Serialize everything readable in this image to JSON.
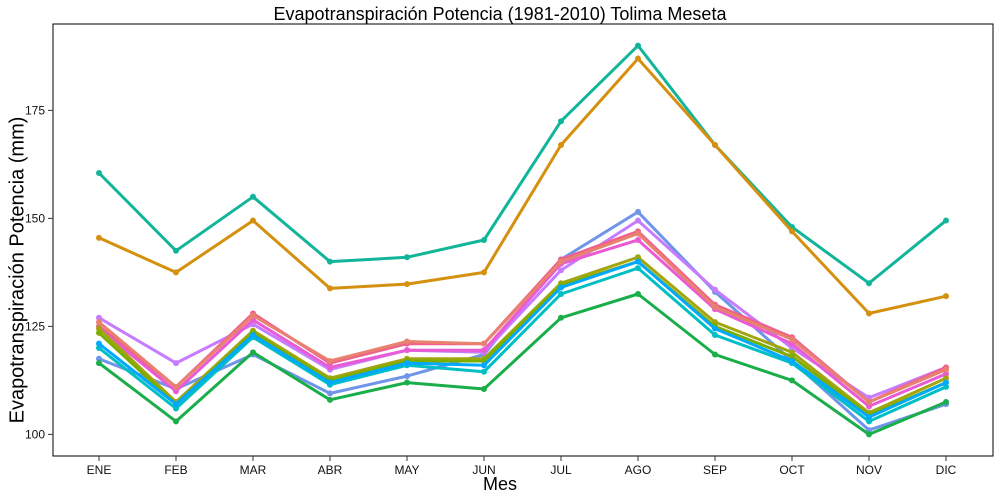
{
  "chart_data": {
    "type": "line",
    "title": "Evapotranspiración Potencia (1981-2010)  Tolima Meseta",
    "xlabel": "Mes",
    "ylabel": "Evapotranspiración Potencia  (mm)",
    "categories": [
      "ENE",
      "FEB",
      "MAR",
      "ABR",
      "MAY",
      "JUN",
      "JUL",
      "AGO",
      "SEP",
      "OCT",
      "NOV",
      "DIC"
    ],
    "ylim": [
      95,
      195
    ],
    "yticks": [
      100,
      125,
      150,
      175
    ],
    "grid": false,
    "legend": "none",
    "series": [
      {
        "color": "#12b59a",
        "values": [
          160.5,
          142.5,
          155,
          140,
          141,
          145,
          172.5,
          190,
          167,
          148,
          135,
          149.5
        ]
      },
      {
        "color": "#d4900e",
        "values": [
          145.5,
          137.5,
          149.5,
          133.8,
          134.8,
          137.5,
          167,
          187,
          167,
          147,
          128,
          132
        ]
      },
      {
        "color": "#6f95e8",
        "values": [
          117.5,
          110.5,
          118.5,
          109.5,
          113.5,
          118.5,
          140.5,
          151.5,
          133,
          117,
          101,
          107
        ]
      },
      {
        "color": "#c77cff",
        "values": [
          127,
          116.5,
          125.5,
          115,
          119.5,
          119,
          138,
          149.5,
          133.5,
          120,
          108.5,
          115.5
        ]
      },
      {
        "color": "#f0608c",
        "values": [
          125,
          111,
          128,
          116.5,
          121,
          121,
          140.5,
          147,
          130,
          122.5,
          107.5,
          115.5
        ]
      },
      {
        "color": "#e95bd4",
        "values": [
          124.5,
          110,
          126.5,
          115.5,
          119.5,
          119.5,
          139.5,
          145,
          129,
          121,
          106.5,
          114
        ]
      },
      {
        "color": "#e8826f",
        "values": [
          126,
          111,
          127.5,
          117,
          121.5,
          121,
          140,
          146.5,
          129.5,
          122,
          107.5,
          115
        ]
      },
      {
        "color": "#a3a510",
        "values": [
          124.5,
          107.5,
          124,
          113,
          117.5,
          117.5,
          135,
          141,
          126,
          119,
          105,
          113
        ]
      },
      {
        "color": "#7cae00",
        "values": [
          123.5,
          107,
          123.5,
          112.5,
          117,
          117,
          134.5,
          140,
          125,
          118,
          104.5,
          112
        ]
      },
      {
        "color": "#00bfc4",
        "values": [
          120,
          106,
          122.5,
          111.5,
          116,
          114.5,
          132.5,
          138.5,
          123,
          116.5,
          103,
          111
        ]
      },
      {
        "color": "#00a9ff",
        "values": [
          121,
          107,
          123,
          112,
          116.5,
          116,
          134,
          140,
          124.5,
          117,
          104,
          112
        ]
      },
      {
        "color": "#1aae4a",
        "values": [
          116.5,
          103,
          119,
          108,
          112,
          110.5,
          127,
          132.5,
          118.5,
          112.5,
          100,
          107.5
        ]
      }
    ]
  }
}
